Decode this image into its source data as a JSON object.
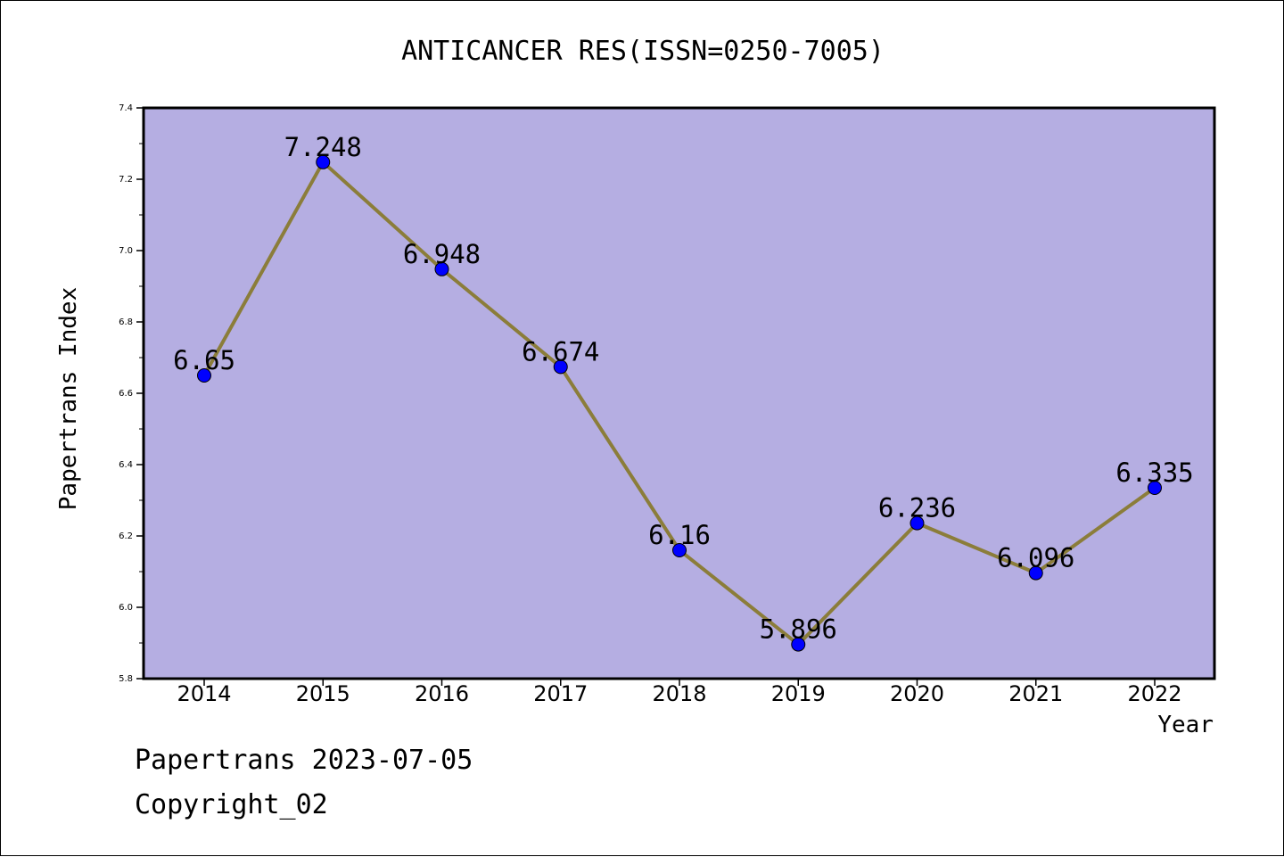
{
  "chart_data": {
    "type": "line",
    "title": "ANTICANCER RES(ISSN=0250-7005)",
    "xlabel": "Year",
    "ylabel": "Papertrans Index",
    "categories": [
      "2014",
      "2015",
      "2016",
      "2017",
      "2018",
      "2019",
      "2020",
      "2021",
      "2022"
    ],
    "series": [
      {
        "values": [
          6.65,
          7.248,
          6.948,
          6.674,
          6.16,
          5.896,
          6.236,
          6.096,
          6.335
        ],
        "labels": [
          "6.65",
          "7.248",
          "6.948",
          "6.674",
          "6.16",
          "5.896",
          "6.236",
          "6.096",
          "6.335"
        ],
        "line_color": "#8b7d3a",
        "marker_color": "#0000ff"
      }
    ],
    "ylim": [
      5.8,
      7.4
    ],
    "yticks": [
      "5.8",
      "6.0",
      "6.2",
      "6.4",
      "6.6",
      "6.8",
      "7.0",
      "7.2",
      "7.4"
    ],
    "grid": false,
    "plot_background": "#b5aee2"
  },
  "footer": {
    "line1": "Papertrans 2023-07-05",
    "line2": "Copyright_02"
  }
}
